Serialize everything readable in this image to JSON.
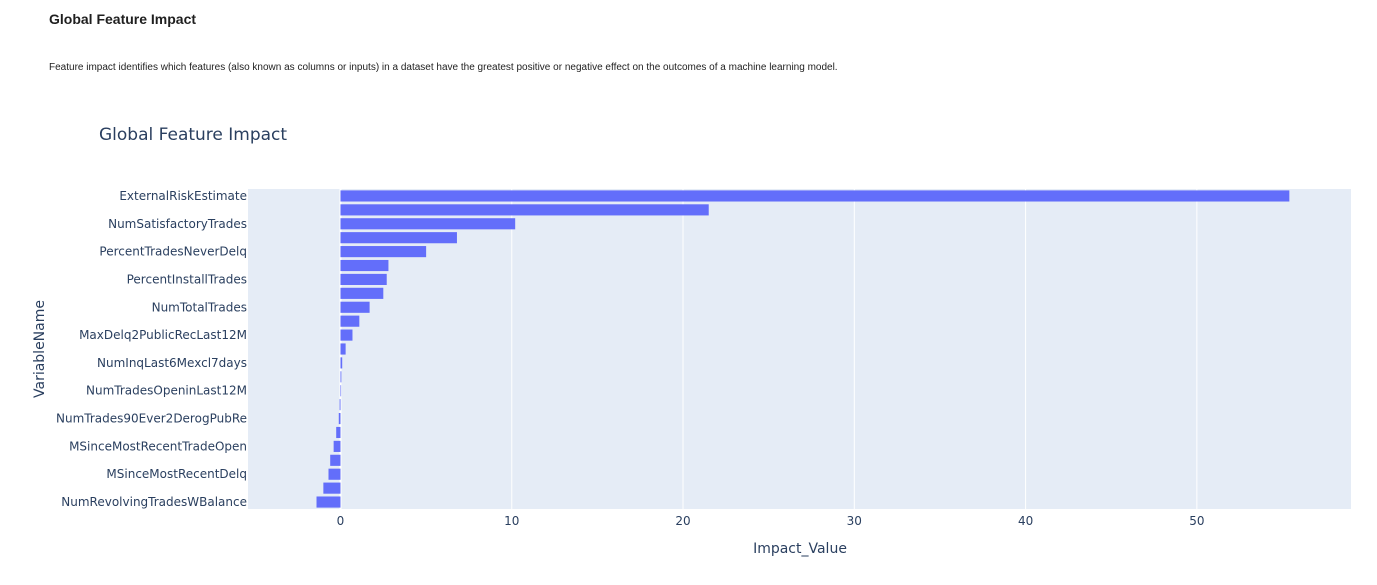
{
  "page": {
    "heading": "Global Feature Impact",
    "description": "Feature impact identifies which features (also known as columns or inputs) in a dataset have the greatest positive or negative effect on the outcomes of a machine learning model."
  },
  "colors": {
    "bar": "#636efa",
    "plot_background": "#e5ecf6",
    "grid": "#ffffff",
    "text": "#2a3f5f"
  },
  "chart_data": {
    "type": "bar",
    "orientation": "horizontal",
    "title": "Global Feature Impact",
    "xlabel": "Impact_Value",
    "ylabel": "VariableName",
    "xlim": [
      -5.4,
      59
    ],
    "xticks": [
      0,
      10,
      20,
      30,
      40,
      50
    ],
    "grid": true,
    "labeled_categories": [
      "ExternalRiskEstimate",
      "NumSatisfactoryTrades",
      "PercentTradesNeverDelq",
      "PercentInstallTrades",
      "NumTotalTrades",
      "MaxDelq2PublicRecLast12M",
      "NumInqLast6Mexcl7days",
      "NumTradesOpeninLast12M",
      "NumTrades90Ever2DerogPubRe",
      "MSinceMostRecentTradeOpen",
      "MSinceMostRecentDelq",
      "NumRevolvingTradesWBalance"
    ],
    "values": [
      55.4,
      21.5,
      10.2,
      6.8,
      5.0,
      2.8,
      2.7,
      2.5,
      1.7,
      1.1,
      0.7,
      0.3,
      0.1,
      0.05,
      0.02,
      -0.05,
      -0.1,
      -0.25,
      -0.4,
      -0.6,
      -0.7,
      -1.0,
      -1.4
    ]
  }
}
